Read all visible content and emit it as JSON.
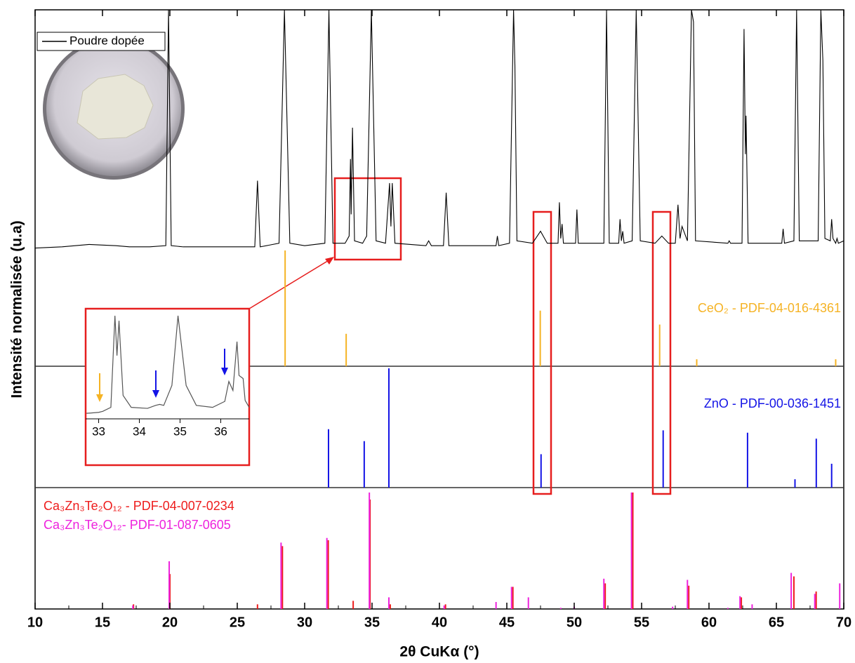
{
  "chart_data": [
    {
      "type": "line",
      "xlabel": "2θ CuKα (°)",
      "ylabel": "Intensité normalisée (u.a)",
      "xlim": [
        10,
        70
      ],
      "xticks": [
        10,
        15,
        20,
        25,
        30,
        35,
        40,
        45,
        50,
        55,
        60,
        65,
        70
      ],
      "ylim": [
        0,
        100
      ],
      "legend": "upper left",
      "series": [
        {
          "name": "Poudre dopée",
          "color": "#000000",
          "x": [
            10,
            12,
            14,
            16,
            17,
            18.5,
            19.7,
            19.9,
            20.1,
            21,
            23,
            26.3,
            26.5,
            26.7,
            28.1,
            28.5,
            28.9,
            30,
            31.5,
            31.8,
            32.1,
            33,
            33.3,
            33.4,
            33.45,
            33.55,
            33.7,
            34.3,
            34.5,
            34.6,
            34.95,
            35.3,
            36,
            36.3,
            36.4,
            36.5,
            36.7,
            39,
            39.2,
            39.4,
            40.3,
            40.5,
            40.7,
            44.2,
            44.3,
            44.4,
            45.2,
            45.5,
            45.6,
            45.75,
            46.9,
            47.5,
            48,
            48.8,
            48.9,
            49,
            49.1,
            49.2,
            50.1,
            50.2,
            50.3,
            52.2,
            52.4,
            52.6,
            53.3,
            53.4,
            53.5,
            53.6,
            53.7,
            54.3,
            54.6,
            54.9,
            56,
            56.5,
            57,
            57.5,
            57.7,
            57.85,
            58,
            58.4,
            58.7,
            58.85,
            59,
            61.4,
            61.5,
            61.6,
            62.45,
            62.6,
            62.7,
            62.75,
            62.9,
            65.4,
            65.5,
            65.6,
            66.3,
            66.5,
            66.7,
            68.1,
            68.3,
            68.45,
            68.6,
            69,
            69.1,
            69.2,
            69.4,
            69.5,
            69.6,
            70
          ],
          "values": [
            1,
            1.5,
            2.5,
            2,
            1.5,
            1.5,
            2,
            100,
            2,
            1.5,
            1.5,
            1.5,
            29,
            1.5,
            3,
            100,
            3,
            2,
            3,
            100,
            3,
            3,
            6,
            38,
            15,
            51,
            4,
            3,
            5,
            6,
            100,
            4,
            3,
            28,
            10,
            28,
            3,
            2,
            4,
            2,
            2,
            24,
            2,
            2,
            6,
            2,
            3,
            100,
            77,
            4,
            3,
            8,
            3,
            3,
            20,
            5,
            11,
            3,
            3,
            17,
            3,
            3,
            100,
            3,
            3,
            13,
            4,
            8,
            3,
            4,
            100,
            4,
            3,
            6,
            3,
            3,
            19,
            5,
            10,
            4,
            100,
            95,
            4,
            3,
            4,
            3,
            3,
            92,
            40,
            56,
            3,
            3,
            9,
            3,
            4,
            100,
            4,
            4,
            100,
            79,
            5,
            4,
            13,
            5,
            3,
            5,
            3,
            4
          ]
        }
      ]
    },
    {
      "type": "stem",
      "ylim": [
        0,
        100
      ],
      "series": [
        {
          "name": "CeO₂ - PDF-04-016-4361",
          "color": "#f5b324",
          "x": [
            28.55,
            33.08,
            47.48,
            56.34,
            59.09,
            69.4
          ],
          "values": [
            100,
            28,
            48,
            36,
            6,
            6
          ]
        }
      ]
    },
    {
      "type": "stem",
      "ylim": [
        0,
        100
      ],
      "series": [
        {
          "name": "ZnO - PDF-00-036-1451",
          "color": "#1414e6",
          "x": [
            31.77,
            34.42,
            36.25,
            47.54,
            56.6,
            62.86,
            66.38,
            67.96,
            69.1
          ],
          "values": [
            49,
            39,
            100,
            28,
            48,
            46,
            7,
            41,
            20
          ]
        }
      ]
    },
    {
      "type": "stem",
      "ylim": [
        0,
        100
      ],
      "series": [
        {
          "name": "Ca₃Zn₃Te₂O₁₂ - PDF-04-007-0234",
          "color": "#ee1c1c",
          "x": [
            17.3,
            20.0,
            26.5,
            28.35,
            31.75,
            33.6,
            34.85,
            36.35,
            40.45,
            45.45,
            52.3,
            54.35,
            58.5,
            62.4,
            66.3,
            67.95
          ],
          "values": [
            4,
            30,
            4,
            54,
            59,
            7,
            94,
            4,
            4,
            19,
            22,
            100,
            20,
            10,
            28,
            15
          ]
        },
        {
          "name": "Ca₃Zn₃Te₂O₁₂- PDF-01-087-0605",
          "color": "#ee22dd",
          "x": [
            17.25,
            19.95,
            28.25,
            31.65,
            34.8,
            36.25,
            40.35,
            44.2,
            45.35,
            46.6,
            49.0,
            50.0,
            52.2,
            54.25,
            57.3,
            58.4,
            61.4,
            62.3,
            63.2,
            66.1,
            67.85,
            69.7
          ],
          "values": [
            3,
            41,
            57,
            61,
            100,
            10,
            3,
            6,
            19,
            10,
            1,
            2,
            26,
            100,
            2,
            25,
            1,
            11,
            4,
            31,
            13,
            22
          ]
        }
      ]
    },
    {
      "type": "line",
      "xlim": [
        32.68,
        36.7
      ],
      "xticks": [
        33,
        34,
        35,
        36
      ],
      "ylim": [
        0,
        100
      ],
      "series": [
        {
          "color": "#555555",
          "x": [
            32.7,
            33,
            33.1,
            33.3,
            33.4,
            33.45,
            33.5,
            33.6,
            33.8,
            34.2,
            34.4,
            34.5,
            34.6,
            34.8,
            34.95,
            35.15,
            35.4,
            35.8,
            36.1,
            36.2,
            36.3,
            36.4,
            36.45,
            36.55,
            36.6,
            36.7
          ],
          "values": [
            2,
            3,
            4,
            8,
            100,
            60,
            95,
            20,
            8,
            7,
            10,
            11,
            10,
            30,
            100,
            30,
            10,
            8,
            14,
            34,
            25,
            74,
            40,
            37,
            15,
            8
          ]
        }
      ]
    }
  ]
}
